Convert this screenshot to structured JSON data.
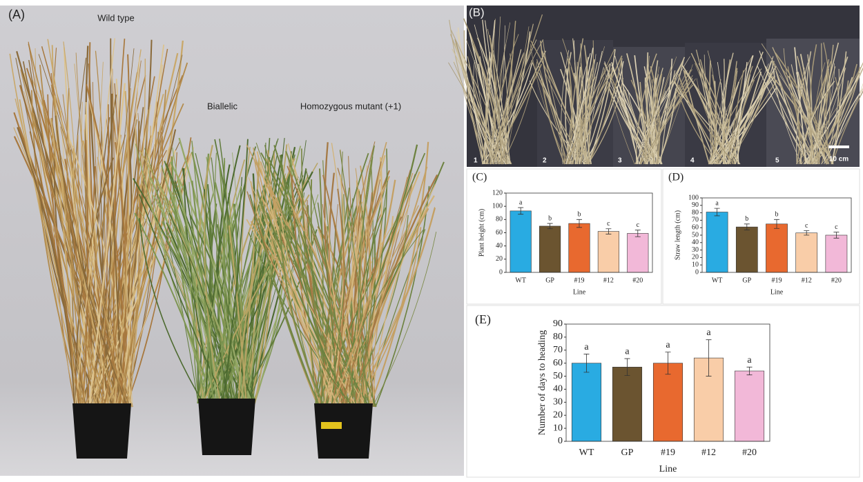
{
  "photo_a": {
    "panel_label": "(A)",
    "labels": [
      "Wild type",
      "Biallelic",
      "Homozygous mutant (+1)"
    ]
  },
  "photo_b": {
    "panel_label": "(B)",
    "plant_numbers": [
      "1",
      "2",
      "3",
      "4",
      "5"
    ],
    "scale_bar": "10 cm"
  },
  "chart_data": [
    {
      "type": "bar",
      "panel_label": "(C)",
      "ylabel": "Plant height (cm)",
      "xlabel": "Line",
      "categories": [
        "WT",
        "GP",
        "#19",
        "#12",
        "#20"
      ],
      "values": [
        93,
        70,
        74,
        62,
        59
      ],
      "errors": [
        5,
        4,
        6,
        4,
        5
      ],
      "sig_letters": [
        "a",
        "b",
        "b",
        "c",
        "c"
      ],
      "colors": [
        "#29abe2",
        "#6b5430",
        "#e8692f",
        "#f9cda8",
        "#f2b8d8"
      ],
      "ylim": [
        0,
        120
      ],
      "yticks": [
        0,
        20,
        40,
        60,
        80,
        100,
        120
      ]
    },
    {
      "type": "bar",
      "panel_label": "(D)",
      "ylabel": "Straw length (cm)",
      "xlabel": "Line",
      "categories": [
        "WT",
        "GP",
        "#19",
        "#12",
        "#20"
      ],
      "values": [
        81,
        61,
        65,
        53,
        50
      ],
      "errors": [
        5,
        4,
        6,
        3,
        4
      ],
      "sig_letters": [
        "a",
        "b",
        "b",
        "c",
        "c"
      ],
      "colors": [
        "#29abe2",
        "#6b5430",
        "#e8692f",
        "#f9cda8",
        "#f2b8d8"
      ],
      "ylim": [
        0,
        100
      ],
      "yticks": [
        0,
        10,
        20,
        30,
        40,
        50,
        60,
        70,
        80,
        90,
        100
      ]
    },
    {
      "type": "bar",
      "panel_label": "(E)",
      "ylabel": "Number of days to heading",
      "xlabel": "Line",
      "categories": [
        "WT",
        "GP",
        "#19",
        "#12",
        "#20"
      ],
      "values": [
        60,
        57,
        60,
        64,
        54
      ],
      "errors": [
        7,
        6.5,
        8.5,
        14,
        3
      ],
      "sig_letters": [
        "a",
        "a",
        "a",
        "a",
        "a"
      ],
      "colors": [
        "#29abe2",
        "#6b5430",
        "#e8692f",
        "#f9cda8",
        "#f2b8d8"
      ],
      "ylim": [
        0,
        90
      ],
      "yticks": [
        0,
        10,
        20,
        30,
        40,
        50,
        60,
        70,
        80,
        90
      ]
    }
  ]
}
